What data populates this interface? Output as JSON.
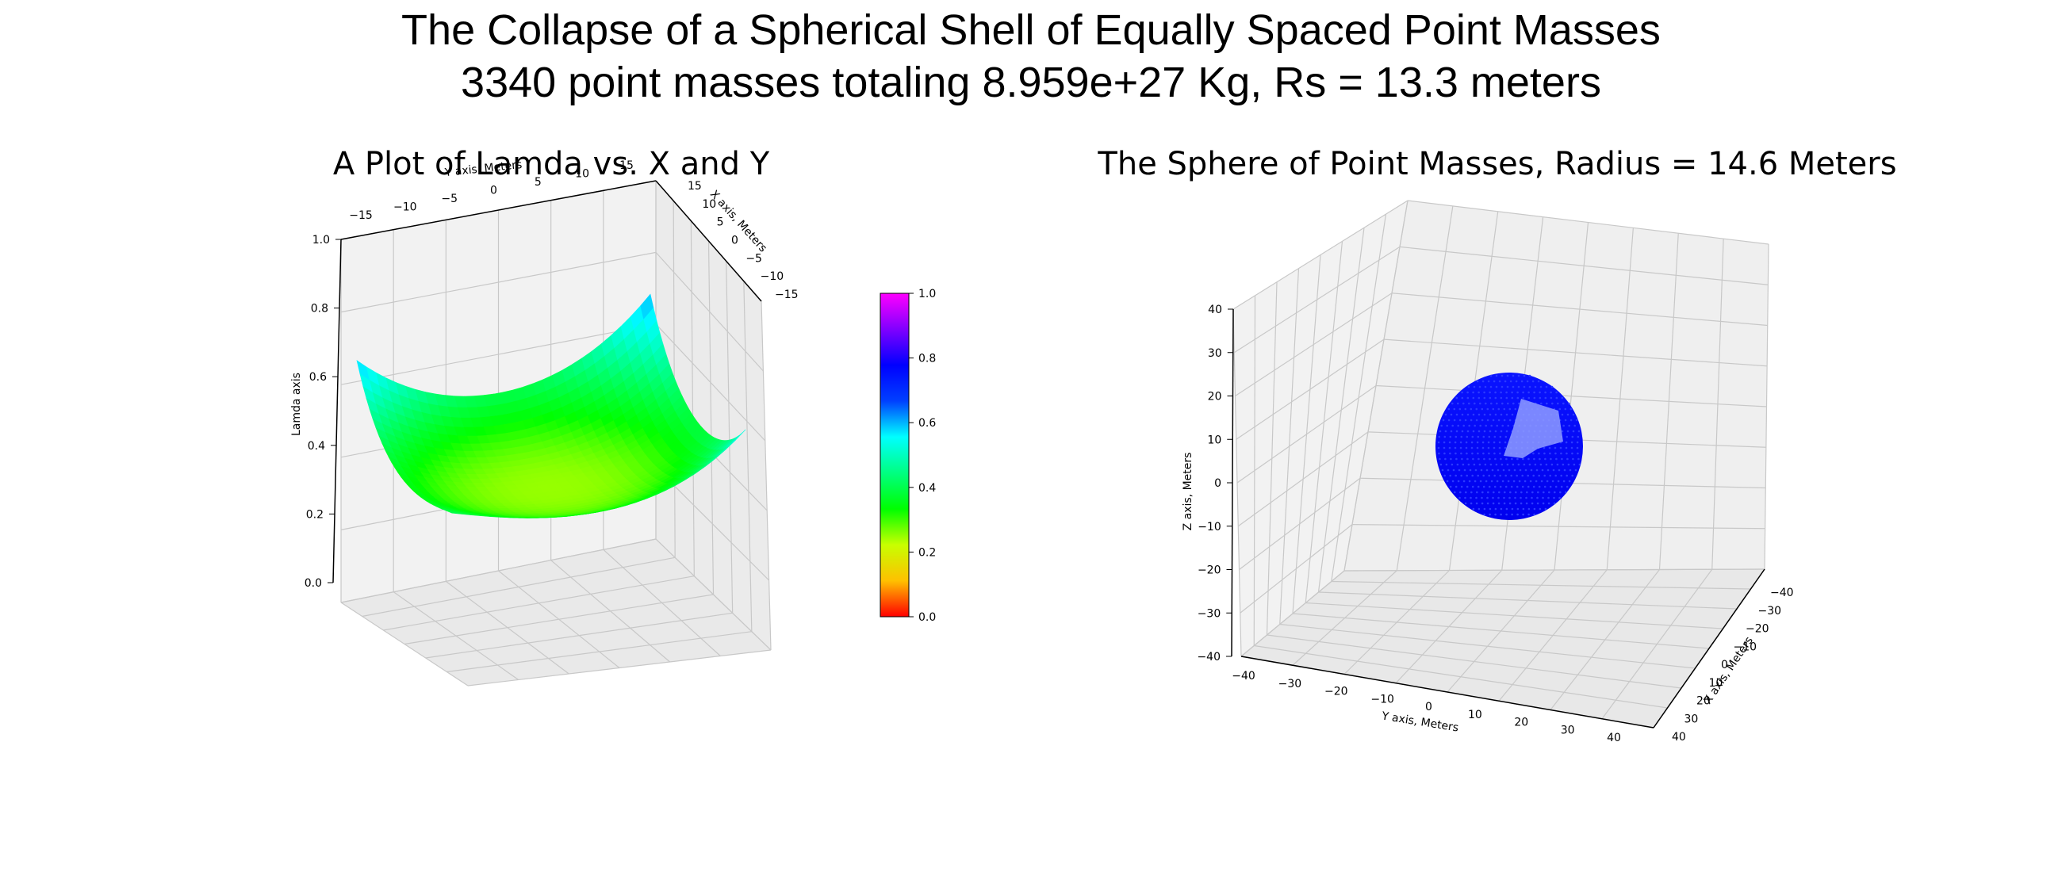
{
  "figure": {
    "title_line1": "The Collapse of a Spherical Shell of Equally Spaced Point Masses",
    "title_line2": "3340 point masses totaling 8.959e+27 Kg, Rs = 13.3 meters"
  },
  "chart_data": [
    {
      "type": "surface",
      "title": "A Plot of Lamda vs. X and Y",
      "xlabel": "X axis, Meters",
      "ylabel": "Y axis, Meters",
      "zlabel": "Lamda axis",
      "xlim": [
        -15,
        15
      ],
      "ylim": [
        -15,
        15
      ],
      "zlim": [
        0.0,
        1.0
      ],
      "x_ticks": [
        "−15",
        "−10",
        "−5",
        "0",
        "5",
        "10",
        "15"
      ],
      "y_ticks": [
        "−15",
        "−10",
        "−5",
        "0",
        "5",
        "10",
        "15"
      ],
      "z_ticks": [
        "0.0",
        "0.2",
        "0.4",
        "0.6",
        "0.8",
        "1.0"
      ],
      "surface": {
        "center_value": 0.33,
        "corner_values": [
          0.64,
          0.66,
          0.6,
          0.46
        ],
        "grid": 30
      },
      "colormap": "hsv-like (red → yellow → green → cyan → blue → magenta)",
      "colorbar": {
        "ticks": [
          "0.0",
          "0.2",
          "0.4",
          "0.6",
          "0.8",
          "1.0"
        ],
        "stops": [
          "#ff0000",
          "#ffc000",
          "#c8ff00",
          "#00ff00",
          "#00ff80",
          "#00ffff",
          "#0040ff",
          "#0000ff",
          "#8000ff",
          "#ff00ff"
        ]
      },
      "grid": true
    },
    {
      "type": "scatter3d",
      "title": "The Sphere of Point Masses, Radius = 14.6 Meters",
      "xlabel": "X axis, Meters",
      "ylabel": "Y axis, Meters",
      "zlabel": "Z axis, Meters",
      "xlim": [
        -40,
        40
      ],
      "ylim": [
        -40,
        40
      ],
      "zlim": [
        -40,
        40
      ],
      "x_ticks": [
        "−40",
        "−30",
        "−20",
        "−10",
        "0",
        "10",
        "20",
        "30",
        "40"
      ],
      "y_ticks": [
        "−40",
        "−30",
        "−20",
        "−10",
        "0",
        "10",
        "20",
        "30",
        "40"
      ],
      "z_ticks": [
        "−40",
        "−30",
        "−20",
        "−10",
        "0",
        "10",
        "20",
        "30",
        "40"
      ],
      "sphere_radius": 14.6,
      "point_count": 3340,
      "point_color": "#0000ff",
      "highlight_color": "#9aa6ff",
      "grid": true
    }
  ]
}
